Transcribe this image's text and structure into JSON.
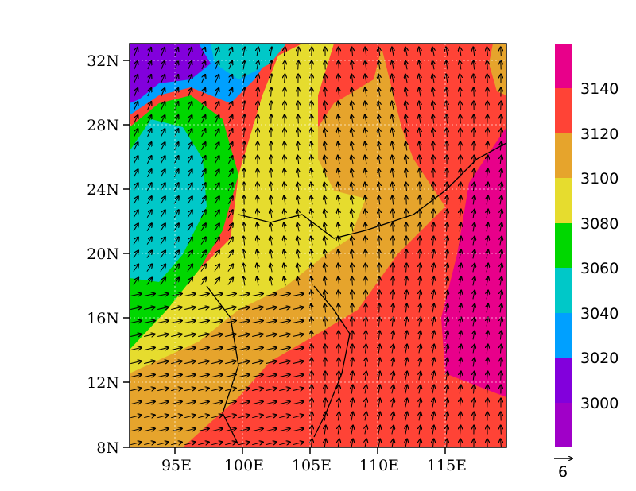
{
  "map": {
    "lat_labels": [
      "32N",
      "28N",
      "24N",
      "20N",
      "16N",
      "12N",
      "8N"
    ],
    "lon_labels": [
      "95E",
      "100E",
      "105E",
      "110E",
      "115E"
    ],
    "field": "geopotential-height-contours",
    "vectors": "wind-arrows"
  },
  "colorbar": {
    "labels": [
      "3140",
      "3120",
      "3100",
      "3080",
      "3060",
      "3040",
      "3020",
      "3000"
    ],
    "colors": [
      "#e8008a",
      "#ff4336",
      "#e6a42c",
      "#e6dc2e",
      "#00d700",
      "#00c8c8",
      "#00a0ff",
      "#8200dc",
      "#a000c8"
    ]
  },
  "vector_key": {
    "label": "6"
  }
}
